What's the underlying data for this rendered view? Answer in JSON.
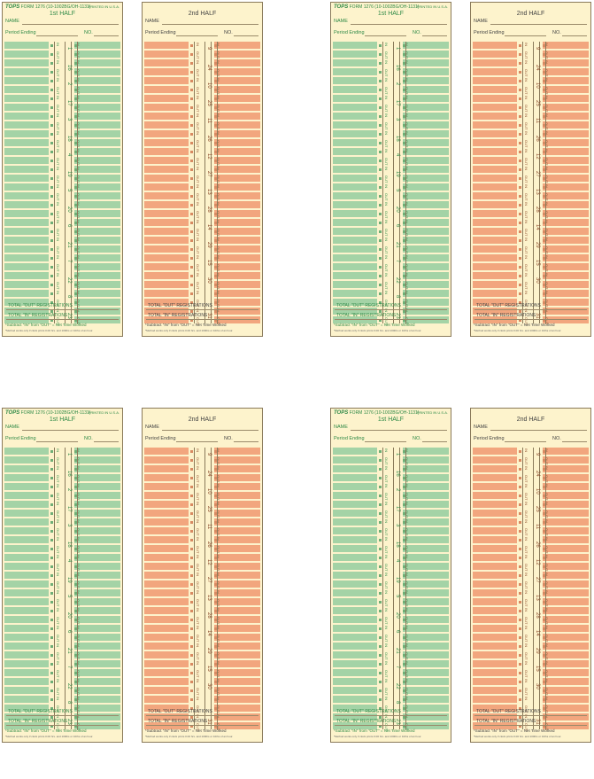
{
  "cards": [
    {
      "variant": "green",
      "half": "1st HALF",
      "days": [
        "1",
        "16",
        "2",
        "17",
        "3",
        "18",
        "4",
        "19",
        "5",
        "20",
        "6",
        "21",
        "7",
        "22",
        "8",
        "23"
      ]
    },
    {
      "variant": "orange",
      "half": "2nd HALF",
      "days": [
        "9",
        "24",
        "10",
        "25",
        "11",
        "26",
        "12",
        "27",
        "13",
        "28",
        "14",
        "29",
        "15",
        "30",
        "",
        "31"
      ]
    },
    {
      "variant": "green",
      "half": "1st HALF",
      "days": [
        "1",
        "16",
        "2",
        "17",
        "3",
        "18",
        "4",
        "19",
        "5",
        "20",
        "6",
        "21",
        "7",
        "22",
        "8",
        "23"
      ]
    },
    {
      "variant": "orange",
      "half": "2nd HALF",
      "days": [
        "9",
        "24",
        "10",
        "25",
        "11",
        "26",
        "12",
        "27",
        "13",
        "28",
        "14",
        "29",
        "15",
        "30",
        "",
        "31"
      ]
    },
    {
      "variant": "green",
      "half": "1st HALF",
      "days": [
        "1",
        "16",
        "2",
        "17",
        "3",
        "18",
        "4",
        "19",
        "5",
        "20",
        "6",
        "21",
        "7",
        "22",
        "8",
        "23"
      ]
    },
    {
      "variant": "orange",
      "half": "2nd HALF",
      "days": [
        "9",
        "24",
        "10",
        "25",
        "11",
        "26",
        "12",
        "27",
        "13",
        "28",
        "14",
        "29",
        "15",
        "30",
        "",
        "31"
      ]
    },
    {
      "variant": "green",
      "half": "1st HALF",
      "days": [
        "1",
        "16",
        "2",
        "17",
        "3",
        "18",
        "4",
        "19",
        "5",
        "20",
        "6",
        "21",
        "7",
        "22",
        "8",
        "23"
      ]
    },
    {
      "variant": "orange",
      "half": "2nd HALF",
      "days": [
        "9",
        "24",
        "10",
        "25",
        "11",
        "26",
        "12",
        "27",
        "13",
        "28",
        "14",
        "29",
        "15",
        "30",
        "",
        "31"
      ]
    }
  ],
  "labels": {
    "brand": "TOPS",
    "form": "FORM 1276 (10-1002BG/OH-1131)",
    "printed": "PRINTED IN U.S.A.",
    "name": "NAME",
    "period": "Period Ending",
    "no": "NO.",
    "in": "IN",
    "out": "OUT",
    "total_out": "TOTAL \"OUT\" REGISTRATIONS",
    "total_in": "TOTAL \"IN\" REGISTRATIONS",
    "subtract": "*Subtract \"IN\" from \"OUT\" = Net Time Worked",
    "method": "*Method works only if clock prints 0.00 hrs. and 100ths or 10ths of an hour."
  },
  "colors": {
    "green": "#a4d3a6",
    "orange": "#f2a67e",
    "paper": "#fdf3cc"
  }
}
